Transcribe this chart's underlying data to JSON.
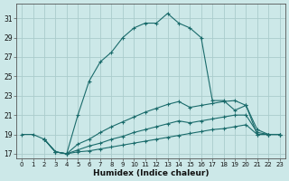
{
  "xlabel": "Humidex (Indice chaleur)",
  "background_color": "#cce8e8",
  "grid_color": "#aacccc",
  "line_color": "#1a6b6b",
  "xlim": [
    -0.5,
    23.5
  ],
  "ylim": [
    16.5,
    32.5
  ],
  "xticks": [
    0,
    1,
    2,
    3,
    4,
    5,
    6,
    7,
    8,
    9,
    10,
    11,
    12,
    13,
    14,
    15,
    16,
    17,
    18,
    19,
    20,
    21,
    22,
    23
  ],
  "yticks": [
    17,
    19,
    21,
    23,
    25,
    27,
    29,
    31
  ],
  "curve1_x": [
    0,
    1,
    2,
    3,
    4,
    5,
    6,
    7,
    8,
    9,
    10,
    11,
    12,
    13,
    14,
    15,
    16,
    17,
    18,
    19,
    20,
    21,
    22,
    23
  ],
  "curve1_y": [
    19.0,
    19.0,
    18.5,
    17.2,
    17.0,
    21.0,
    24.5,
    26.5,
    27.5,
    29.0,
    30.0,
    30.5,
    30.5,
    31.5,
    30.5,
    30.0,
    29.0,
    22.5,
    22.5,
    21.5,
    22.0,
    19.0,
    19.0,
    19.0
  ],
  "curve2_x": [
    2,
    3,
    4,
    5,
    6,
    7,
    8,
    9,
    10,
    11,
    12,
    13,
    14,
    15,
    16,
    17,
    18,
    19,
    20,
    21,
    22,
    23
  ],
  "curve2_y": [
    18.5,
    17.2,
    17.0,
    18.0,
    18.5,
    19.2,
    19.8,
    20.3,
    20.8,
    21.3,
    21.7,
    22.1,
    22.4,
    21.8,
    22.0,
    22.2,
    22.4,
    22.5,
    22.0,
    19.5,
    19.0,
    19.0
  ],
  "curve3_x": [
    2,
    3,
    4,
    5,
    6,
    7,
    8,
    9,
    10,
    11,
    12,
    13,
    14,
    15,
    16,
    17,
    18,
    19,
    20,
    21,
    22,
    23
  ],
  "curve3_y": [
    18.5,
    17.2,
    17.0,
    17.4,
    17.8,
    18.1,
    18.5,
    18.8,
    19.2,
    19.5,
    19.8,
    20.1,
    20.4,
    20.2,
    20.4,
    20.6,
    20.8,
    21.0,
    21.0,
    19.2,
    19.0,
    19.0
  ],
  "curve4_x": [
    2,
    3,
    4,
    5,
    6,
    7,
    8,
    9,
    10,
    11,
    12,
    13,
    14,
    15,
    16,
    17,
    18,
    19,
    20,
    21,
    22,
    23
  ],
  "curve4_y": [
    18.5,
    17.2,
    17.0,
    17.2,
    17.3,
    17.5,
    17.7,
    17.9,
    18.1,
    18.3,
    18.5,
    18.7,
    18.9,
    19.1,
    19.3,
    19.5,
    19.6,
    19.8,
    20.0,
    19.0,
    19.0,
    19.0
  ]
}
